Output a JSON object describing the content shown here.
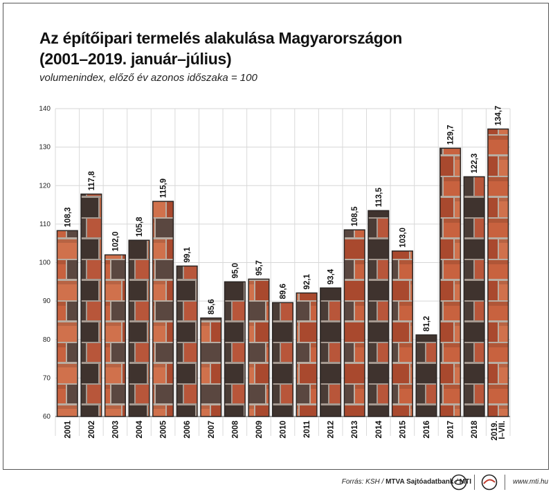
{
  "title_line1": "Az építőipari termelés alakulása Magyarországon",
  "title_line2": "(2001–2019. január–július)",
  "subtitle": "volumenindex, előző év azonos időszaka = 100",
  "footer": {
    "source_prefix": "Forrás: KSH / ",
    "source_bold": "MTVA Sajtóadatbank",
    "source_sep": " / ",
    "source_mti": "MTI",
    "url": "www.mti.hu"
  },
  "chart_data": {
    "type": "bar",
    "title": "Az építőipari termelés alakulása Magyarországon (2001–2019. január–július)",
    "subtitle": "volumenindex, előző év azonos időszaka = 100",
    "categories": [
      "2001",
      "2002",
      "2003",
      "2004",
      "2005",
      "2006",
      "2007",
      "2008",
      "2009",
      "2010",
      "2011",
      "2012",
      "2013",
      "2014",
      "2015",
      "2016",
      "2017",
      "2018",
      "2019. I–VII."
    ],
    "category_lines": [
      [
        "2001"
      ],
      [
        "2002"
      ],
      [
        "2003"
      ],
      [
        "2004"
      ],
      [
        "2005"
      ],
      [
        "2006"
      ],
      [
        "2007"
      ],
      [
        "2008"
      ],
      [
        "2009"
      ],
      [
        "2010"
      ],
      [
        "2011"
      ],
      [
        "2012"
      ],
      [
        "2013"
      ],
      [
        "2014"
      ],
      [
        "2015"
      ],
      [
        "2016"
      ],
      [
        "2017"
      ],
      [
        "2018"
      ],
      [
        "2019.",
        "I–VII."
      ]
    ],
    "values": [
      108.3,
      117.8,
      102.0,
      105.8,
      115.9,
      99.1,
      85.6,
      95.0,
      95.7,
      89.6,
      92.1,
      93.4,
      108.5,
      113.5,
      103.0,
      81.2,
      129.7,
      122.3,
      134.7
    ],
    "value_labels": [
      "108,3",
      "117,8",
      "102,0",
      "105,8",
      "115,9",
      "99,1",
      "85,6",
      "95,0",
      "95,7",
      "89,6",
      "92,1",
      "93,4",
      "108,5",
      "113,5",
      "103,0",
      "81,2",
      "129,7",
      "122,3",
      "134,7"
    ],
    "yticks": [
      60,
      70,
      80,
      90,
      100,
      110,
      120,
      130,
      140
    ],
    "ylim": [
      60,
      140
    ],
    "grid": true,
    "colors": {
      "brick_light": "#c8623f",
      "brick_dark": "#4a3c36",
      "mortar": "#b9ada2",
      "bar_outline": "#2a2523"
    }
  }
}
